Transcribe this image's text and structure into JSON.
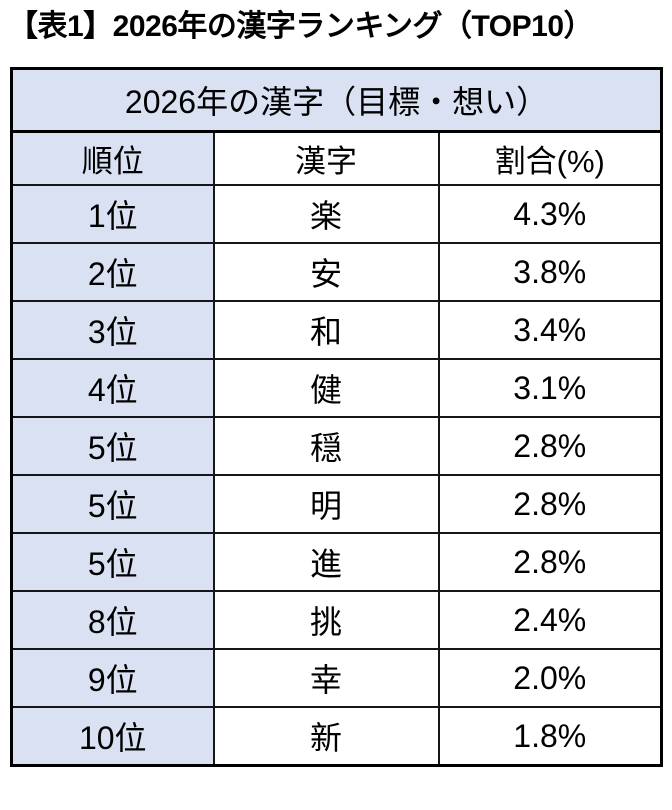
{
  "title": "【表1】2026年の漢字ランキング（TOP10）",
  "table": {
    "merged_header": "2026年の漢字（目標・想い）",
    "columns": [
      "順位",
      "漢字",
      "割合(%)"
    ],
    "rows": [
      [
        "1位",
        "楽",
        "4.3%"
      ],
      [
        "2位",
        "安",
        "3.8%"
      ],
      [
        "3位",
        "和",
        "3.4%"
      ],
      [
        "4位",
        "健",
        "3.1%"
      ],
      [
        "5位",
        "穏",
        "2.8%"
      ],
      [
        "5位",
        "明",
        "2.8%"
      ],
      [
        "5位",
        "進",
        "2.8%"
      ],
      [
        "8位",
        "挑",
        "2.4%"
      ],
      [
        "9位",
        "幸",
        "2.0%"
      ],
      [
        "10位",
        "新",
        "1.8%"
      ]
    ]
  },
  "chart_data": {
    "type": "table",
    "title": "2026年の漢字（目標・想い）",
    "caption": "【表1】2026年の漢字ランキング（TOP10）",
    "columns": [
      "順位",
      "漢字",
      "割合(%)"
    ],
    "ranks": [
      "1位",
      "2位",
      "3位",
      "4位",
      "5位",
      "5位",
      "5位",
      "8位",
      "9位",
      "10位"
    ],
    "kanji": [
      "楽",
      "安",
      "和",
      "健",
      "穏",
      "明",
      "進",
      "挑",
      "幸",
      "新"
    ],
    "percent_values": [
      4.3,
      3.8,
      3.4,
      3.1,
      2.8,
      2.8,
      2.8,
      2.4,
      2.0,
      1.8
    ]
  },
  "colors": {
    "accent_bg": "#D9E1F2",
    "border": "#000000",
    "text": "#000000",
    "page_bg": "#FFFFFF"
  }
}
